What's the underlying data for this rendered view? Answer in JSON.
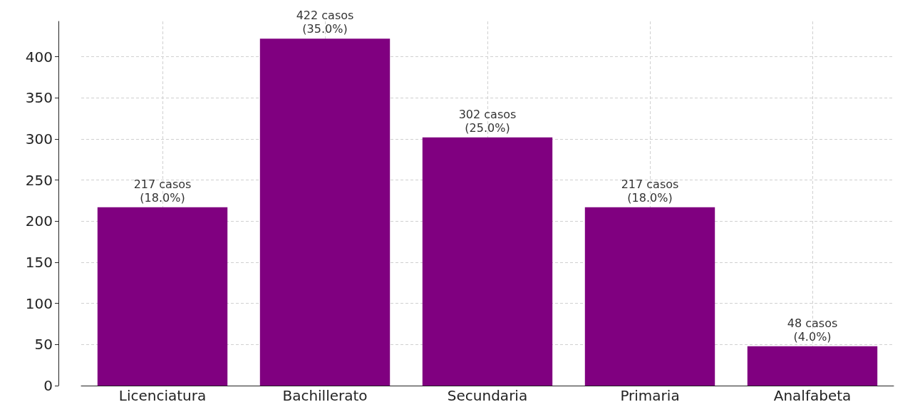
{
  "chart_data": {
    "type": "bar",
    "categories": [
      "Licenciatura",
      "Bachillerato",
      "Secundaria",
      "Primaria",
      "Analfabeta"
    ],
    "values": [
      217,
      422,
      302,
      217,
      48
    ],
    "value_labels": [
      "217 casos\n(18.0%)",
      "422 casos\n(35.0%)",
      "302 casos\n(25.0%)",
      "217 casos\n(18.0%)",
      "48 casos\n(4.0%)"
    ],
    "color": "#800080",
    "ylim": [
      0,
      443.1
    ],
    "yticks": [
      0,
      50,
      100,
      150,
      200,
      250,
      300,
      350,
      400
    ],
    "grid": true
  }
}
